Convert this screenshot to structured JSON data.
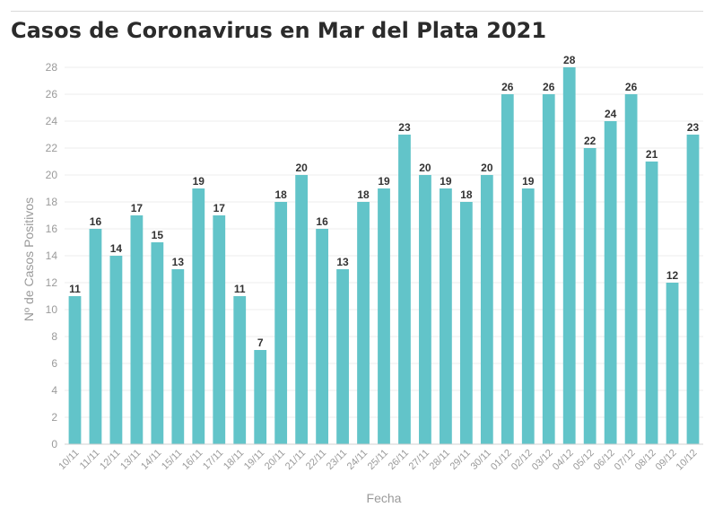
{
  "chart_data": {
    "type": "bar",
    "title": "Casos de Coronavirus en Mar del Plata 2021",
    "xlabel": "Fecha",
    "ylabel": "Nº de Casos Positivos",
    "ylim": [
      0,
      28
    ],
    "yticks": [
      0,
      2,
      4,
      6,
      8,
      10,
      12,
      14,
      16,
      18,
      20,
      22,
      24,
      26,
      28
    ],
    "grid": true,
    "bar_color": "#62c4c9",
    "categories": [
      "10/11",
      "11/11",
      "12/11",
      "13/11",
      "14/11",
      "15/11",
      "16/11",
      "17/11",
      "18/11",
      "19/11",
      "20/11",
      "21/11",
      "22/11",
      "23/11",
      "24/11",
      "25/11",
      "26/11",
      "27/11",
      "28/11",
      "29/11",
      "30/11",
      "01/12",
      "02/12",
      "03/12",
      "04/12",
      "05/12",
      "06/12",
      "07/12",
      "08/12",
      "09/12",
      "10/12"
    ],
    "values": [
      11,
      16,
      14,
      17,
      15,
      13,
      19,
      17,
      11,
      7,
      18,
      20,
      16,
      13,
      18,
      19,
      23,
      20,
      19,
      18,
      20,
      26,
      19,
      26,
      28,
      22,
      24,
      26,
      21,
      12,
      23
    ]
  }
}
